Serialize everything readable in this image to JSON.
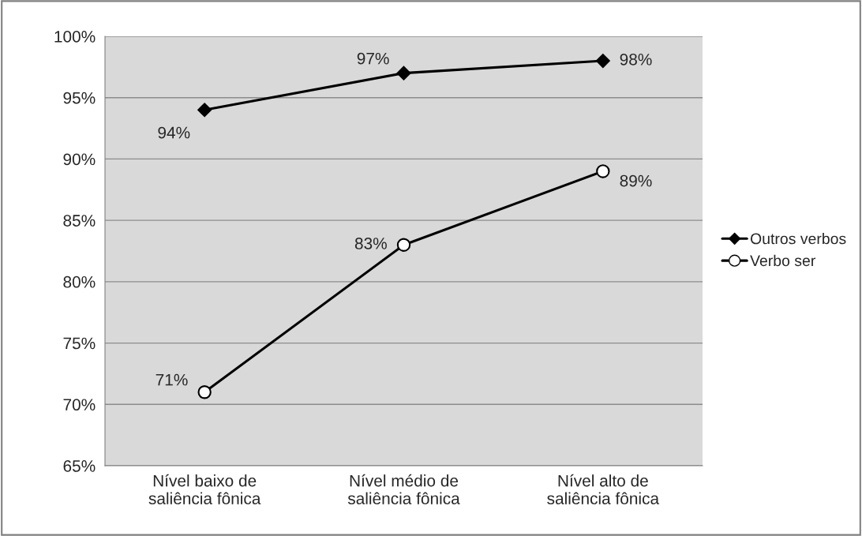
{
  "chart_data": {
    "type": "line",
    "categories": [
      "Nível baixo de\nsaliência fônica",
      "Nível médio de\nsaliência fônica",
      "Nível alto de\nsaliência fônica"
    ],
    "series": [
      {
        "name": "Outros verbos",
        "color": "#000000",
        "marker": "diamond",
        "values": [
          94,
          97,
          98
        ],
        "value_labels": [
          "94%",
          "97%",
          "98%"
        ]
      },
      {
        "name": "Verbo ser",
        "color": "#000000",
        "marker": "circle",
        "values": [
          71,
          83,
          89
        ],
        "value_labels": [
          "71%",
          "83%",
          "89%"
        ]
      }
    ],
    "ylim": [
      65,
      100
    ],
    "yticks": [
      {
        "value": 65,
        "label": "65%"
      },
      {
        "value": 70,
        "label": "70%"
      },
      {
        "value": 75,
        "label": "75%"
      },
      {
        "value": 80,
        "label": "80%"
      },
      {
        "value": 85,
        "label": "85%"
      },
      {
        "value": 90,
        "label": "90%"
      },
      {
        "value": 95,
        "label": "95%"
      },
      {
        "value": 100,
        "label": "100%"
      }
    ],
    "grid": "y",
    "legend": "right",
    "line_style": "solid"
  }
}
